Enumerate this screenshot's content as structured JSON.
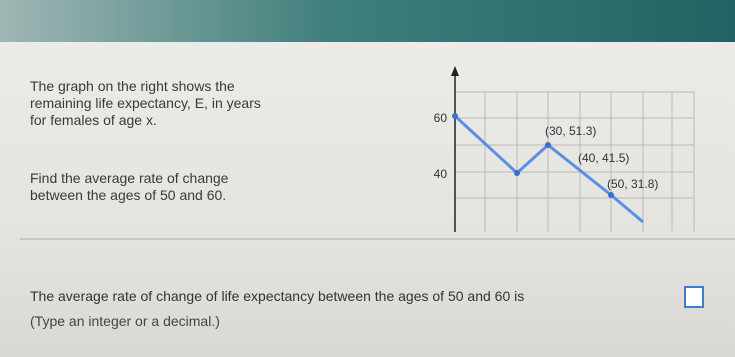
{
  "question": {
    "description": [
      "The graph on the right shows the",
      "remaining life expectancy, E, in years",
      "for females of age x."
    ],
    "task": [
      "Find the average rate of change",
      "between the ages of 50 and 60."
    ]
  },
  "graph": {
    "yticks": [
      "60",
      "40"
    ],
    "point_labels": [
      "(30, 51.3)",
      "(40, 41.5)",
      "(50, 31.8)"
    ]
  },
  "answer": {
    "prompt": "The average rate of change of life expectancy between the ages of 50 and 60 is",
    "hint": "(Type an integer or a decimal.)"
  }
}
